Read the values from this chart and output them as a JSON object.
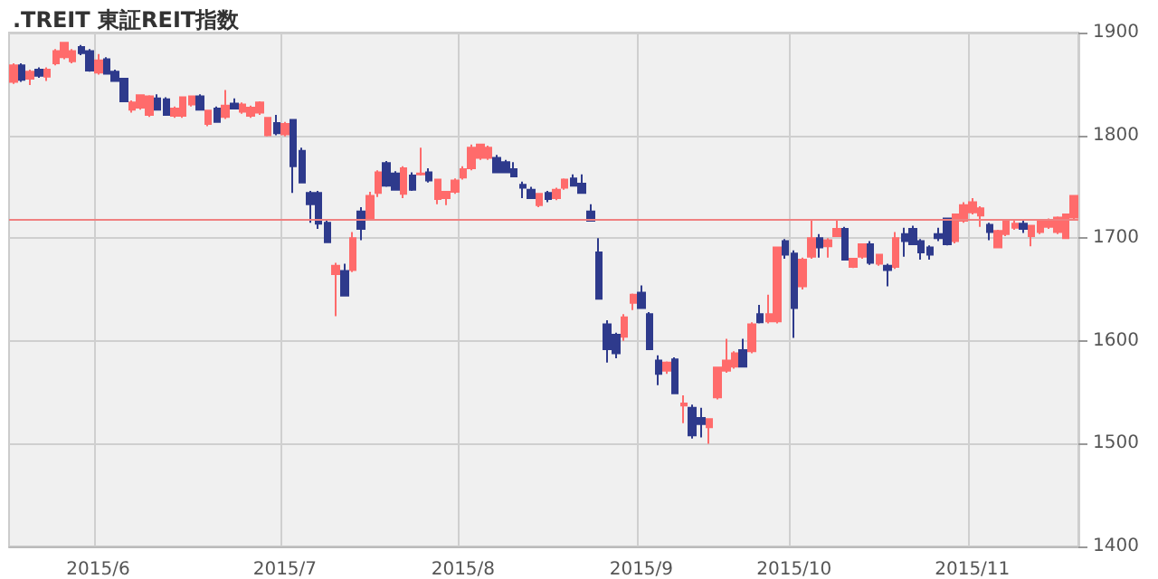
{
  "chart_data": {
    "type": "candlestick",
    "title": ".TREIT 東証REIT指数",
    "categories": [
      null,
      null,
      null,
      null,
      null,
      null,
      null,
      null,
      null,
      null,
      "2015/6",
      null,
      null,
      null,
      null,
      null,
      null,
      null,
      null,
      null,
      null,
      null,
      null,
      null,
      null,
      null,
      null,
      null,
      null,
      null,
      null,
      null,
      "2015/7",
      null,
      null,
      null,
      null,
      null,
      null,
      null,
      null,
      null,
      null,
      null,
      null,
      null,
      null,
      null,
      null,
      null,
      null,
      null,
      null,
      "2015/8",
      null,
      null,
      null,
      null,
      null,
      null,
      null,
      null,
      null,
      null,
      null,
      null,
      null,
      null,
      null,
      null,
      null,
      null,
      null,
      null,
      "2015/9",
      null,
      null,
      null,
      null,
      null,
      null,
      null,
      null,
      null,
      null,
      null,
      null,
      null,
      null,
      null,
      null,
      null,
      "2015/10",
      null,
      null,
      null,
      null,
      null,
      null,
      null,
      null,
      null,
      null,
      null,
      null,
      null,
      null,
      null,
      null,
      null,
      null,
      null,
      null,
      "2015/11",
      null,
      null,
      null,
      null,
      null,
      null,
      null,
      null,
      null,
      null,
      null,
      null
    ],
    "ohlc": [
      [
        1852,
        1870,
        1850,
        1868
      ],
      [
        1868,
        1870,
        1852,
        1854
      ],
      [
        1855,
        1864,
        1849,
        1862
      ],
      [
        1864,
        1866,
        1856,
        1858
      ],
      [
        1857,
        1866,
        1853,
        1864
      ],
      [
        1870,
        1884,
        1868,
        1882
      ],
      [
        1876,
        1891,
        1874,
        1890
      ],
      [
        1872,
        1884,
        1870,
        1882
      ],
      [
        1886,
        1888,
        1878,
        1880
      ],
      [
        1882,
        1884,
        1862,
        1863
      ],
      [
        1861,
        1879,
        1859,
        1873
      ],
      [
        1874,
        1876,
        1860,
        1860
      ],
      [
        1862,
        1864,
        1852,
        1853
      ],
      [
        1855,
        1856,
        1833,
        1833
      ],
      [
        1825,
        1834,
        1822,
        1832
      ],
      [
        1827,
        1840,
        1825,
        1839
      ],
      [
        1820,
        1839,
        1818,
        1838
      ],
      [
        1836,
        1840,
        1824,
        1825
      ],
      [
        1835,
        1837,
        1820,
        1820
      ],
      [
        1819,
        1828,
        1817,
        1826
      ],
      [
        1819,
        1838,
        1817,
        1837
      ],
      [
        1830,
        1838,
        1828,
        1838
      ],
      [
        1838,
        1840,
        1825,
        1825
      ],
      [
        1811,
        1825,
        1809,
        1824
      ],
      [
        1826,
        1828,
        1813,
        1813
      ],
      [
        1818,
        1844,
        1816,
        1829
      ],
      [
        1831,
        1836,
        1826,
        1826
      ],
      [
        1823,
        1832,
        1821,
        1830
      ],
      [
        1819,
        1829,
        1817,
        1827
      ],
      [
        1822,
        1833,
        1820,
        1832
      ],
      [
        1800,
        1817,
        1799,
        1817
      ],
      [
        1812,
        1820,
        1800,
        1802
      ],
      [
        1801,
        1813,
        1799,
        1811
      ],
      [
        1815,
        1816,
        1744,
        1770
      ],
      [
        1785,
        1788,
        1754,
        1754
      ],
      [
        1744,
        1746,
        1715,
        1733
      ],
      [
        1744,
        1746,
        1709,
        1714
      ],
      [
        1715,
        1717,
        1696,
        1696
      ],
      [
        1665,
        1676,
        1624,
        1673
      ],
      [
        1668,
        1675,
        1644,
        1644
      ],
      [
        1669,
        1706,
        1667,
        1700
      ],
      [
        1726,
        1730,
        1698,
        1709
      ],
      [
        1719,
        1745,
        1717,
        1741
      ],
      [
        1744,
        1766,
        1740,
        1764
      ],
      [
        1773,
        1775,
        1750,
        1751
      ],
      [
        1763,
        1765,
        1747,
        1747
      ],
      [
        1743,
        1770,
        1739,
        1768
      ],
      [
        1761,
        1764,
        1746,
        1747
      ],
      [
        1762,
        1788,
        1761,
        1763
      ],
      [
        1764,
        1768,
        1754,
        1756
      ],
      [
        1738,
        1757,
        1733,
        1757
      ],
      [
        1739,
        1746,
        1732,
        1745
      ],
      [
        1745,
        1758,
        1743,
        1756
      ],
      [
        1759,
        1770,
        1757,
        1767
      ],
      [
        1768,
        1791,
        1766,
        1788
      ],
      [
        1778,
        1791,
        1776,
        1791
      ],
      [
        1778,
        1790,
        1776,
        1788
      ],
      [
        1778,
        1781,
        1764,
        1764
      ],
      [
        1774,
        1776,
        1764,
        1764
      ],
      [
        1767,
        1774,
        1760,
        1760
      ],
      [
        1752,
        1755,
        1739,
        1749
      ],
      [
        1747,
        1750,
        1739,
        1739
      ],
      [
        1732,
        1743,
        1730,
        1743
      ],
      [
        1744,
        1746,
        1735,
        1738
      ],
      [
        1739,
        1749,
        1737,
        1747
      ],
      [
        1749,
        1758,
        1747,
        1757
      ],
      [
        1758,
        1762,
        1751,
        1751
      ],
      [
        1753,
        1762,
        1744,
        1744
      ],
      [
        1726,
        1733,
        1717,
        1717
      ],
      [
        1686,
        1700,
        1641,
        1641
      ],
      [
        1616,
        1620,
        1579,
        1592
      ],
      [
        1606,
        1608,
        1583,
        1588
      ],
      [
        1604,
        1626,
        1600,
        1623
      ],
      [
        1637,
        1646,
        1630,
        1645
      ],
      [
        1647,
        1654,
        1632,
        1632
      ],
      [
        1626,
        1628,
        1592,
        1592
      ],
      [
        1581,
        1586,
        1557,
        1568
      ],
      [
        1571,
        1580,
        1568,
        1579
      ],
      [
        1582,
        1584,
        1549,
        1549
      ],
      [
        1537,
        1547,
        1520,
        1539
      ],
      [
        1535,
        1538,
        1505,
        1508
      ],
      [
        1525,
        1535,
        1506,
        1519
      ],
      [
        1516,
        1524,
        1500,
        1524
      ],
      [
        1545,
        1575,
        1543,
        1574
      ],
      [
        1571,
        1602,
        1569,
        1581
      ],
      [
        1575,
        1590,
        1573,
        1588
      ],
      [
        1591,
        1602,
        1575,
        1575
      ],
      [
        1590,
        1618,
        1588,
        1616
      ],
      [
        1626,
        1635,
        1617,
        1618
      ],
      [
        1619,
        1645,
        1617,
        1626
      ],
      [
        1619,
        1691,
        1617,
        1691
      ],
      [
        1697,
        1699,
        1680,
        1684
      ],
      [
        1685,
        1688,
        1603,
        1632
      ],
      [
        1653,
        1681,
        1650,
        1679
      ],
      [
        1682,
        1717,
        1680,
        1700
      ],
      [
        1700,
        1704,
        1681,
        1691
      ],
      [
        1692,
        1700,
        1681,
        1698
      ],
      [
        1702,
        1717,
        1701,
        1709
      ],
      [
        1709,
        1711,
        1679,
        1679
      ],
      [
        1672,
        1680,
        1671,
        1680
      ],
      [
        1682,
        1694,
        1680,
        1694
      ],
      [
        1694,
        1697,
        1674,
        1676
      ],
      [
        1675,
        1684,
        1673,
        1684
      ],
      [
        1673,
        1675,
        1653,
        1669
      ],
      [
        1672,
        1706,
        1670,
        1700
      ],
      [
        1704,
        1710,
        1682,
        1697
      ],
      [
        1709,
        1712,
        1694,
        1694
      ],
      [
        1697,
        1699,
        1679,
        1686
      ],
      [
        1691,
        1693,
        1679,
        1684
      ],
      [
        1704,
        1710,
        1697,
        1700
      ],
      [
        1719,
        1720,
        1693,
        1694
      ],
      [
        1697,
        1724,
        1695,
        1723
      ],
      [
        1717,
        1735,
        1715,
        1732
      ],
      [
        1725,
        1739,
        1723,
        1735
      ],
      [
        1722,
        1731,
        1711,
        1729
      ],
      [
        1713,
        1715,
        1698,
        1706
      ],
      [
        1691,
        1708,
        1690,
        1707
      ],
      [
        1704,
        1718,
        1702,
        1717
      ],
      [
        1710,
        1717,
        1708,
        1714
      ],
      [
        1714,
        1718,
        1705,
        1709
      ],
      [
        1702,
        1712,
        1692,
        1712
      ],
      [
        1706,
        1717,
        1704,
        1716
      ],
      [
        1711,
        1719,
        1709,
        1717
      ],
      [
        1706,
        1721,
        1704,
        1720
      ],
      [
        1700,
        1723,
        1699,
        1723
      ],
      [
        1720,
        1741,
        1718,
        1741
      ]
    ],
    "colors": [
      "#ff6b6b",
      "#2e3a8c",
      "#ff6b6b",
      "#2e3a8c",
      "#ff6b6b",
      "#ff6b6b",
      "#ff6b6b",
      "#ff6b6b",
      "#2e3a8c",
      "#2e3a8c",
      "#ff6b6b",
      "#2e3a8c",
      "#2e3a8c",
      "#2e3a8c",
      "#ff6b6b",
      "#ff6b6b",
      "#ff6b6b",
      "#2e3a8c",
      "#2e3a8c",
      "#ff6b6b",
      "#ff6b6b",
      "#ff6b6b",
      "#2e3a8c",
      "#ff6b6b",
      "#2e3a8c",
      "#ff6b6b",
      "#2e3a8c",
      "#ff6b6b",
      "#ff6b6b",
      "#ff6b6b",
      "#ff6b6b",
      "#2e3a8c",
      "#ff6b6b",
      "#2e3a8c",
      "#2e3a8c",
      "#2e3a8c",
      "#2e3a8c",
      "#2e3a8c",
      "#ff6b6b",
      "#2e3a8c",
      "#ff6b6b",
      "#2e3a8c",
      "#ff6b6b",
      "#ff6b6b",
      "#2e3a8c",
      "#2e3a8c",
      "#ff6b6b",
      "#2e3a8c",
      "#ff6b6b",
      "#2e3a8c",
      "#ff6b6b",
      "#ff6b6b",
      "#ff6b6b",
      "#ff6b6b",
      "#ff6b6b",
      "#ff6b6b",
      "#ff6b6b",
      "#2e3a8c",
      "#2e3a8c",
      "#2e3a8c",
      "#2e3a8c",
      "#2e3a8c",
      "#ff6b6b",
      "#2e3a8c",
      "#ff6b6b",
      "#ff6b6b",
      "#2e3a8c",
      "#2e3a8c",
      "#2e3a8c",
      "#2e3a8c",
      "#2e3a8c",
      "#2e3a8c",
      "#ff6b6b",
      "#ff6b6b",
      "#2e3a8c",
      "#2e3a8c",
      "#2e3a8c",
      "#ff6b6b",
      "#2e3a8c",
      "#ff6b6b",
      "#2e3a8c",
      "#2e3a8c",
      "#ff6b6b",
      "#ff6b6b",
      "#ff6b6b",
      "#ff6b6b",
      "#2e3a8c",
      "#ff6b6b",
      "#2e3a8c",
      "#ff6b6b",
      "#ff6b6b",
      "#2e3a8c",
      "#2e3a8c",
      "#ff6b6b",
      "#ff6b6b",
      "#2e3a8c",
      "#ff6b6b",
      "#ff6b6b",
      "#2e3a8c",
      "#ff6b6b",
      "#ff6b6b",
      "#2e3a8c",
      "#ff6b6b",
      "#2e3a8c",
      "#ff6b6b",
      "#2e3a8c",
      "#2e3a8c",
      "#2e3a8c",
      "#2e3a8c",
      "#2e3a8c",
      "#2e3a8c",
      "#ff6b6b",
      "#ff6b6b",
      "#ff6b6b",
      "#ff6b6b",
      "#2e3a8c",
      "#ff6b6b",
      "#ff6b6b",
      "#ff6b6b",
      "#2e3a8c",
      "#ff6b6b",
      "#ff6b6b",
      "#ff6b6b",
      "#ff6b6b",
      "#ff6b6b",
      "#ff6b6b"
    ],
    "ylim": [
      1400,
      1900
    ],
    "yticks": [
      1400,
      1500,
      1600,
      1700,
      1800,
      1900
    ],
    "grid": true,
    "ref_lines": [
      {
        "axis": "y",
        "value": 1719,
        "color": "#f08080"
      }
    ]
  }
}
